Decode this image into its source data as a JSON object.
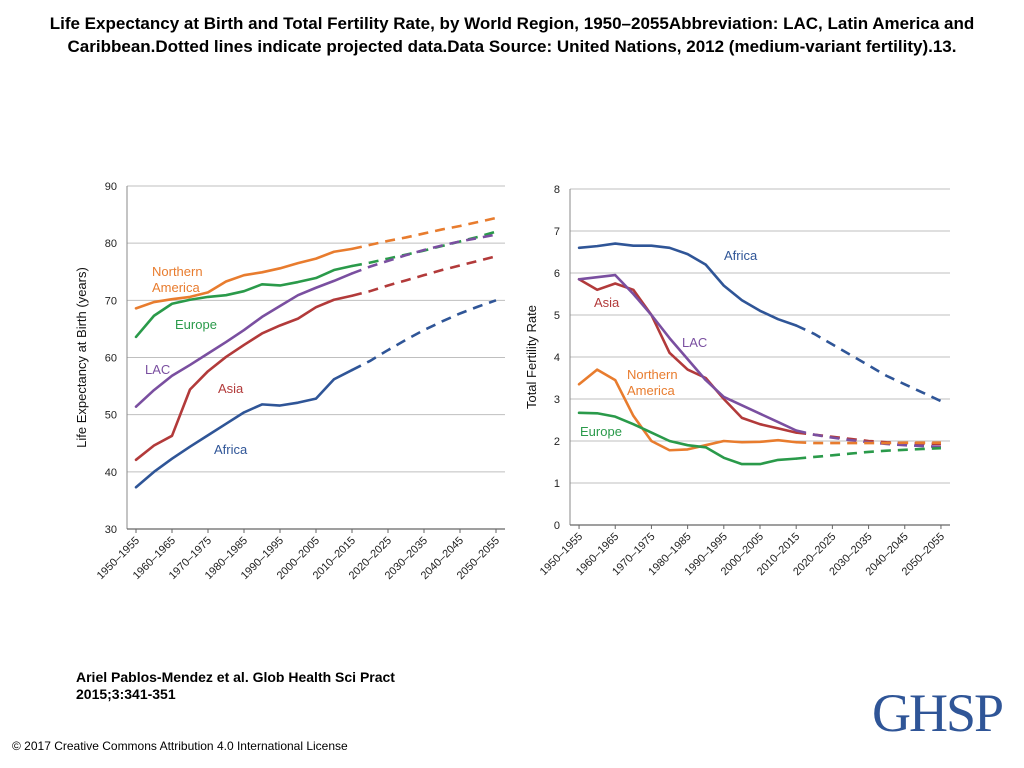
{
  "slide": {
    "title": "Life Expectancy at Birth and Total Fertility Rate, by World Region, 1950–2055Abbreviation: LAC, Latin America and Caribbean.Dotted lines indicate projected data.Data Source: United Nations, 2012 (medium-variant fertility).13.",
    "citation_line1": "Ariel Pablos-Mendez et al. Glob Health Sci Pract",
    "citation_line2": "2015;3:341-351",
    "license": "© 2017 Creative Commons Attribution 4.0 International License",
    "logo_text": "GHSP"
  },
  "colors": {
    "Africa": "#2f5597",
    "Asia": "#b23a3a",
    "LAC": "#7a4fa0",
    "Europe": "#2a9a4a",
    "Northern America": "#e87c2e"
  },
  "chart_data": [
    {
      "type": "line",
      "ylabel": "Life Expectancy at Birth (years)",
      "ylim": [
        30,
        90
      ],
      "yticks": [
        30,
        40,
        50,
        60,
        70,
        80,
        90
      ],
      "grid": "horizontal",
      "categories": [
        "1950–1955",
        "1955–1960",
        "1960–1965",
        "1965–1970",
        "1970–1975",
        "1975–1980",
        "1980–1985",
        "1985–1990",
        "1990–1995",
        "1995–2000",
        "2000–2005",
        "2005–2010",
        "2010–2015",
        "2015–2020",
        "2020–2025",
        "2025–2030",
        "2030–2035",
        "2035–2040",
        "2040–2045",
        "2045–2050",
        "2050–2055"
      ],
      "tick_labels": [
        "1950–1955",
        "1960–1965",
        "1970–1975",
        "1980–1985",
        "1990–1995",
        "2000–2005",
        "2010–2015",
        "2020–2025",
        "2030–2035",
        "2040–2045",
        "2050–2055"
      ],
      "projection_start_index": 12,
      "series": [
        {
          "name": "Northern America",
          "label_lines": [
            "Northern",
            "America"
          ],
          "values": [
            68.6,
            69.7,
            70.2,
            70.6,
            71.4,
            73.3,
            74.4,
            74.9,
            75.6,
            76.5,
            77.3,
            78.5,
            79.0,
            79.7,
            80.4,
            81.0,
            81.7,
            82.4,
            83.0,
            83.7,
            84.4
          ]
        },
        {
          "name": "Europe",
          "label_lines": [
            "Europe"
          ],
          "values": [
            63.6,
            67.3,
            69.4,
            70.1,
            70.6,
            70.9,
            71.6,
            72.8,
            72.6,
            73.2,
            73.9,
            75.3,
            76.0,
            76.6,
            77.3,
            78.0,
            78.7,
            79.5,
            80.3,
            81.1,
            82.0
          ]
        },
        {
          "name": "LAC",
          "label_lines": [
            "LAC"
          ],
          "values": [
            51.4,
            54.3,
            56.8,
            58.7,
            60.7,
            62.7,
            64.8,
            67.1,
            69.0,
            70.9,
            72.2,
            73.4,
            74.7,
            75.9,
            76.9,
            77.9,
            78.8,
            79.6,
            80.3,
            80.9,
            81.5
          ]
        },
        {
          "name": "Asia",
          "label_lines": [
            "Asia"
          ],
          "values": [
            42.1,
            44.6,
            46.3,
            54.4,
            57.6,
            60.1,
            62.2,
            64.2,
            65.6,
            66.8,
            68.8,
            70.1,
            70.8,
            71.6,
            72.6,
            73.5,
            74.4,
            75.3,
            76.1,
            76.9,
            77.7
          ]
        },
        {
          "name": "Africa",
          "label_lines": [
            "Africa"
          ],
          "values": [
            37.3,
            40.0,
            42.3,
            44.4,
            46.4,
            48.4,
            50.4,
            51.8,
            51.6,
            52.1,
            52.8,
            56.2,
            57.8,
            59.4,
            61.3,
            63.1,
            64.8,
            66.3,
            67.7,
            68.9,
            70.0
          ]
        }
      ]
    },
    {
      "type": "line",
      "ylabel": "Total Fertility Rate",
      "ylim": [
        0,
        8
      ],
      "yticks": [
        0,
        1,
        2,
        3,
        4,
        5,
        6,
        7,
        8
      ],
      "grid": "horizontal",
      "categories": [
        "1950–1955",
        "1955–1960",
        "1960–1965",
        "1965–1970",
        "1970–1975",
        "1975–1980",
        "1980–1985",
        "1985–1990",
        "1990–1995",
        "1995–2000",
        "2000–2005",
        "2005–2010",
        "2010–2015",
        "2015–2020",
        "2020–2025",
        "2025–2030",
        "2030–2035",
        "2035–2040",
        "2040–2045",
        "2045–2050",
        "2050–2055"
      ],
      "tick_labels": [
        "1950–1955",
        "1960–1965",
        "1970–1975",
        "1980–1985",
        "1990–1995",
        "2000–2005",
        "2010–2015",
        "2020–2025",
        "2030–2035",
        "2040–2045",
        "2050–2055"
      ],
      "projection_start_index": 12,
      "series": [
        {
          "name": "Africa",
          "label_lines": [
            "Africa"
          ],
          "values": [
            6.6,
            6.64,
            6.7,
            6.65,
            6.65,
            6.6,
            6.45,
            6.2,
            5.7,
            5.35,
            5.1,
            4.9,
            4.75,
            4.55,
            4.3,
            4.05,
            3.8,
            3.55,
            3.35,
            3.15,
            2.95
          ]
        },
        {
          "name": "Asia",
          "label_lines": [
            "Asia"
          ],
          "values": [
            5.85,
            5.6,
            5.75,
            5.6,
            5.0,
            4.1,
            3.7,
            3.5,
            3.0,
            2.55,
            2.4,
            2.3,
            2.2,
            2.15,
            2.1,
            2.05,
            2.0,
            1.97,
            1.95,
            1.94,
            1.93
          ]
        },
        {
          "name": "LAC",
          "label_lines": [
            "LAC"
          ],
          "values": [
            5.85,
            5.9,
            5.95,
            5.5,
            5.0,
            4.45,
            3.95,
            3.45,
            3.05,
            2.85,
            2.65,
            2.45,
            2.25,
            2.15,
            2.08,
            2.02,
            1.97,
            1.93,
            1.9,
            1.88,
            1.86
          ]
        },
        {
          "name": "Northern America",
          "label_lines": [
            "Northern",
            "America"
          ],
          "values": [
            3.35,
            3.7,
            3.45,
            2.6,
            2.0,
            1.78,
            1.8,
            1.9,
            2.0,
            1.97,
            1.98,
            2.02,
            1.97,
            1.95,
            1.95,
            1.95,
            1.95,
            1.95,
            1.96,
            1.96,
            1.96
          ]
        },
        {
          "name": "Europe",
          "label_lines": [
            "Europe"
          ],
          "values": [
            2.67,
            2.66,
            2.58,
            2.4,
            2.2,
            2.0,
            1.9,
            1.85,
            1.6,
            1.45,
            1.45,
            1.55,
            1.58,
            1.62,
            1.66,
            1.7,
            1.74,
            1.77,
            1.79,
            1.81,
            1.83
          ]
        }
      ]
    }
  ]
}
